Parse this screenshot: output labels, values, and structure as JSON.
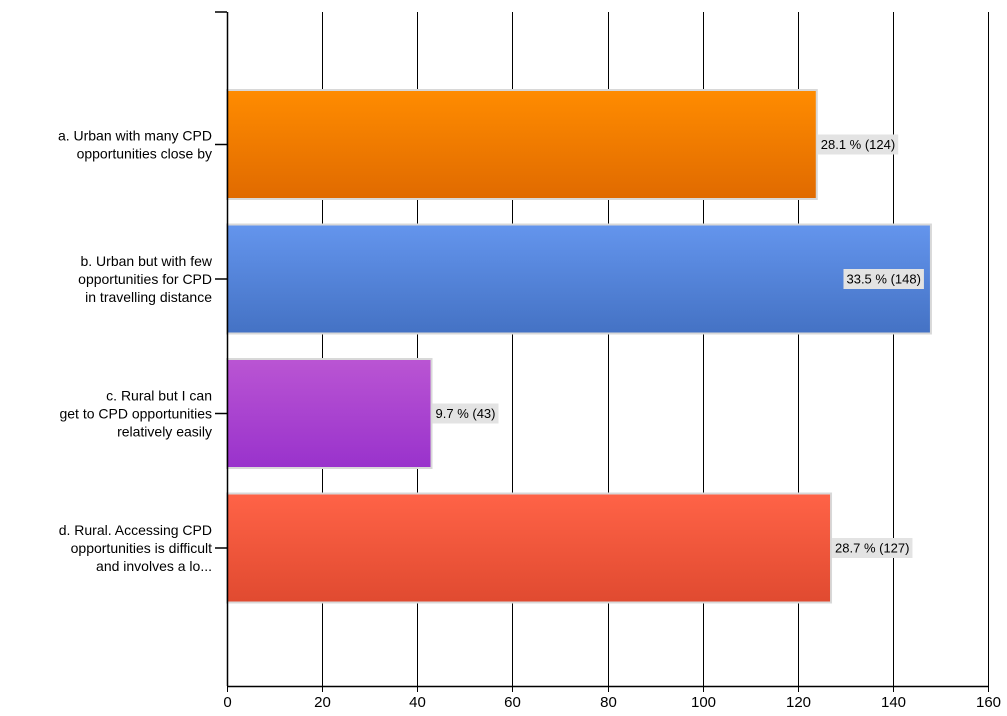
{
  "chart_data": {
    "type": "bar",
    "orientation": "horizontal",
    "title": "",
    "xlabel": "",
    "ylabel": "",
    "xlim": [
      0,
      160
    ],
    "x_ticks": [
      0,
      20,
      40,
      60,
      80,
      100,
      120,
      140,
      160
    ],
    "grid": "vertical",
    "legend": "none",
    "categories": [
      [
        "a.  Urban with many CPD",
        "opportunities close by"
      ],
      [
        "b.  Urban but with few",
        "opportunities for CPD",
        "in travelling distance"
      ],
      [
        "c.  Rural but I can",
        "get to CPD opportunities",
        "relatively easily"
      ],
      [
        "d.  Rural. Accessing CPD",
        "opportunities is difficult",
        "and involves a lo..."
      ]
    ],
    "values": [
      124,
      148,
      43,
      127
    ],
    "percentages": [
      28.1,
      33.5,
      9.7,
      28.7
    ],
    "data_labels": [
      "28.1 % (124)",
      "33.5 % (148)",
      "9.7 % (43)",
      "28.7 % (127)"
    ],
    "colors": [
      {
        "top": "#ff8c00",
        "bottom": "#e06a00"
      },
      {
        "top": "#6495ed",
        "bottom": "#4472c4"
      },
      {
        "top": "#ba55d3",
        "bottom": "#9932cc"
      },
      {
        "top": "#ff6347",
        "bottom": "#e04a30"
      }
    ]
  }
}
